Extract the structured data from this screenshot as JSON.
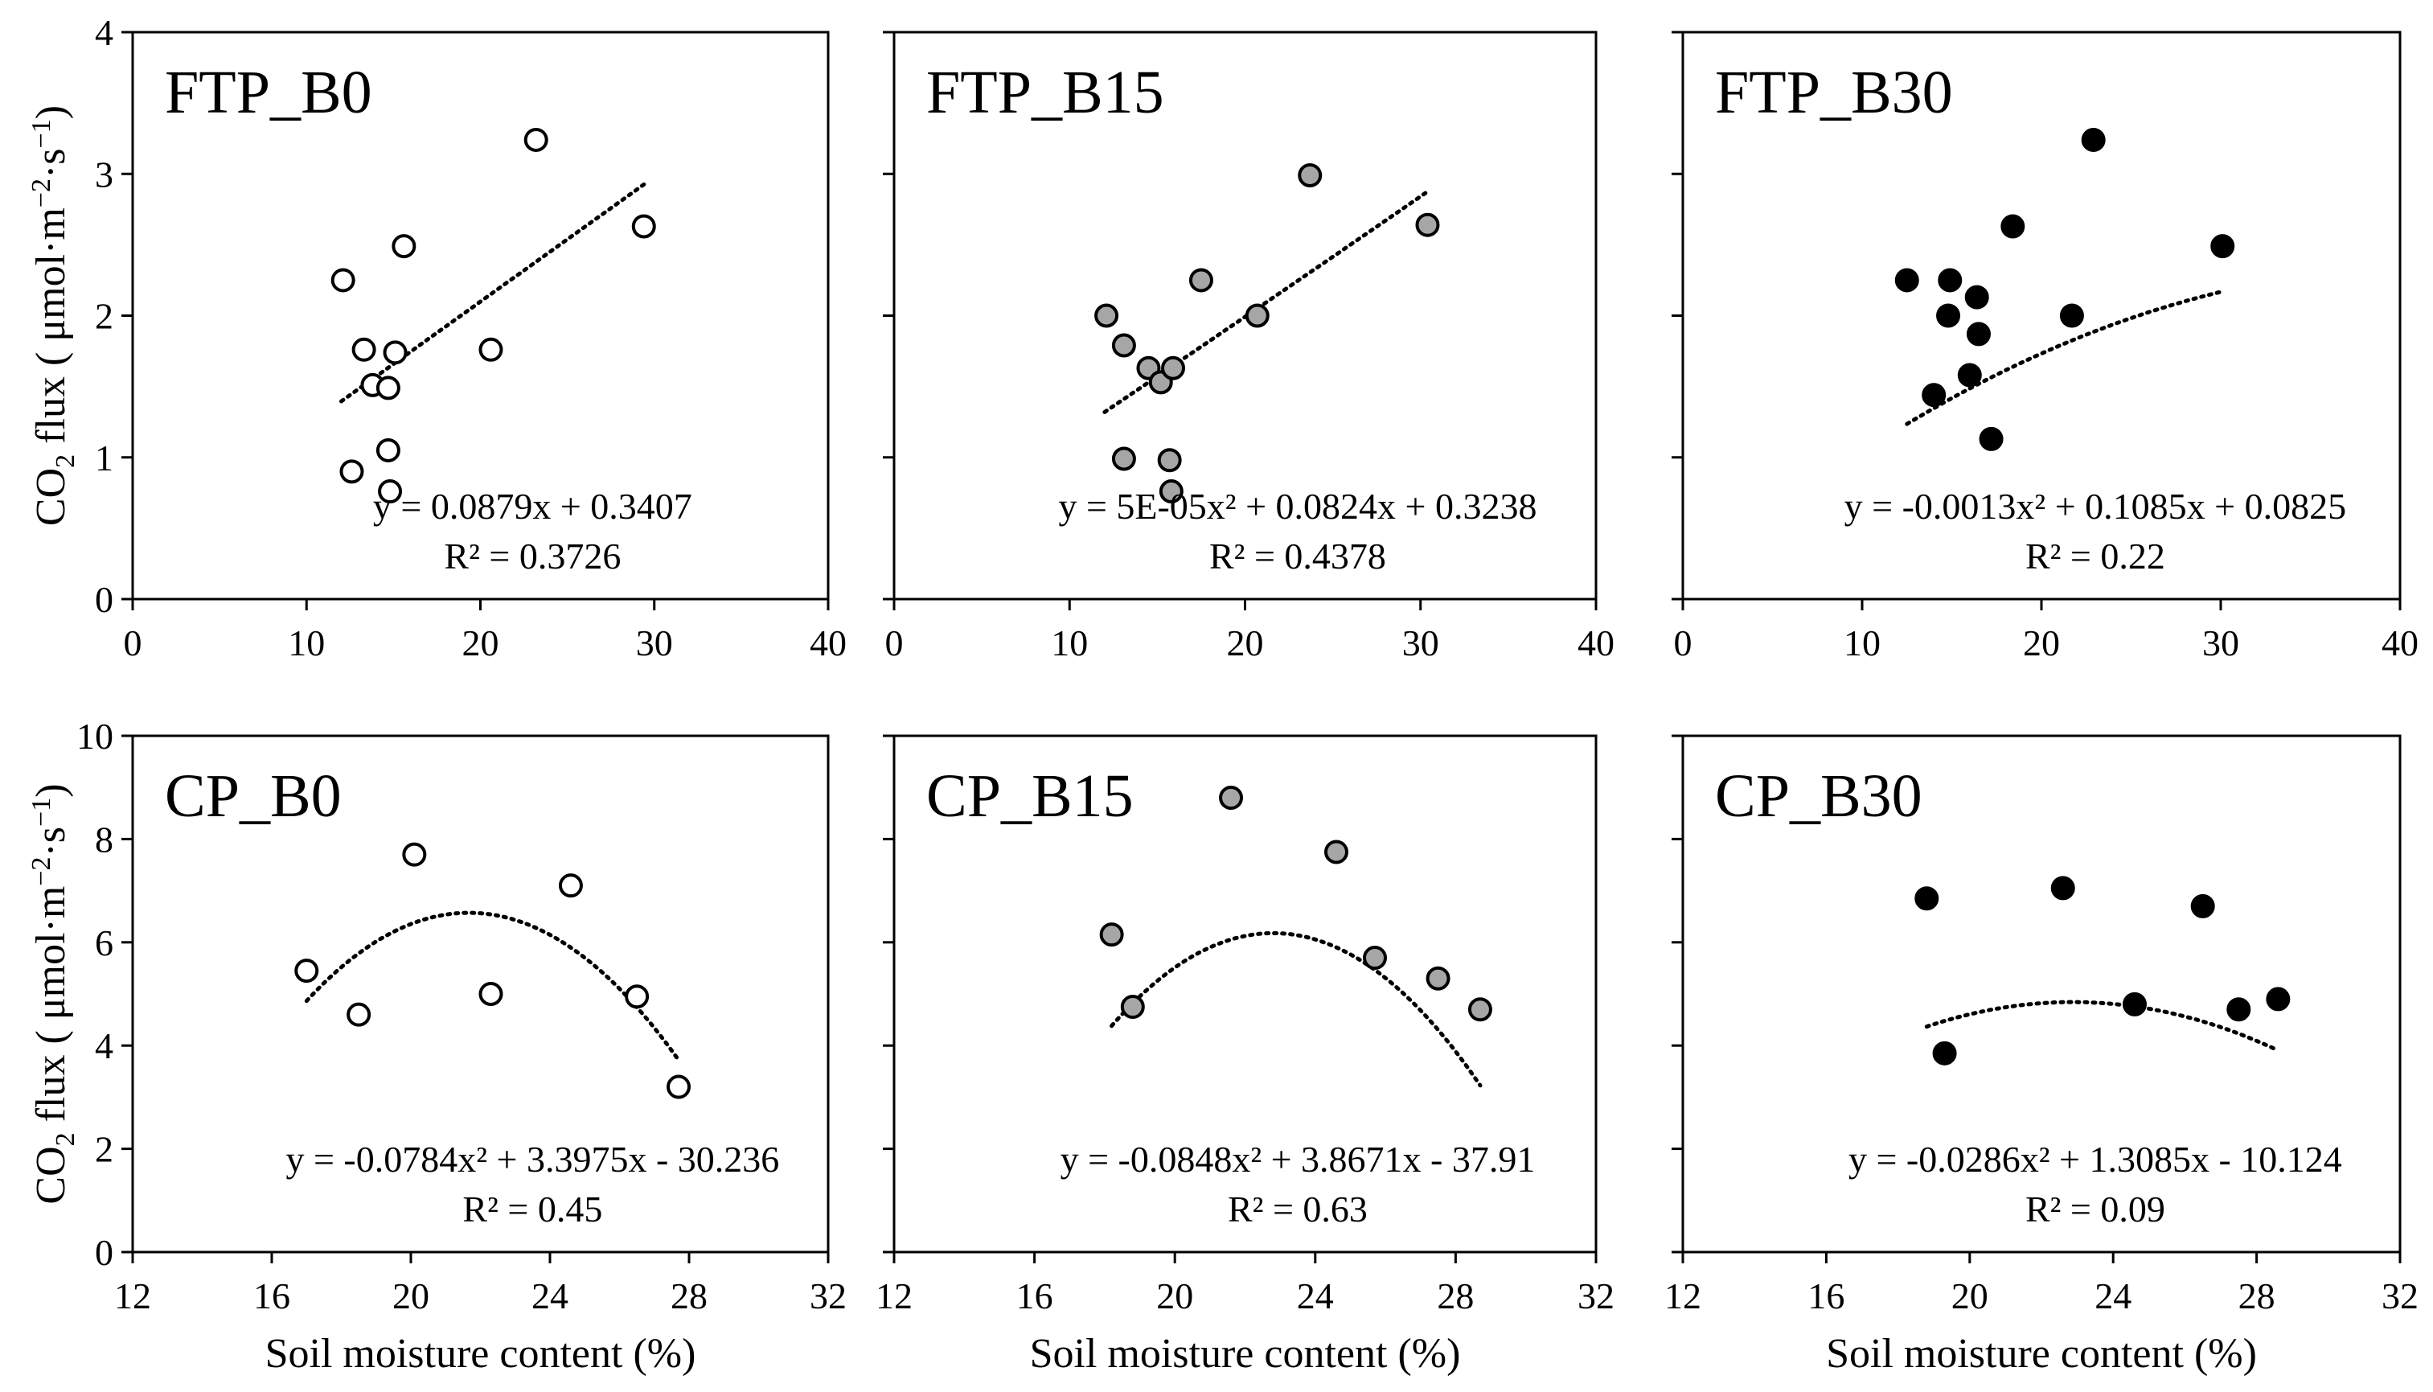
{
  "figure": {
    "ylabel_prefix": "CO",
    "ylabel_sub": "2",
    "ylabel_suffix": " flux ( μmol·m",
    "ylabel_sup1": "−2",
    "ylabel_mid": "·s",
    "ylabel_sup2": "−1",
    "ylabel_close": ")",
    "xlabel": "Soil moisture content (%)"
  },
  "chart_data": [
    {
      "type": "scatter",
      "title": "FTP_B0",
      "marker": "open",
      "xlim": [
        0,
        40
      ],
      "ylim": [
        0,
        4
      ],
      "xticks": [
        "0",
        "10",
        "20",
        "30",
        "40"
      ],
      "yticks": [
        "0",
        "1",
        "2",
        "3",
        "4"
      ],
      "show_xticklabels": true,
      "show_yticklabels": true,
      "points": [
        [
          12.1,
          2.25
        ],
        [
          13.3,
          1.76
        ],
        [
          13.8,
          1.51
        ],
        [
          14.7,
          1.49
        ],
        [
          15.1,
          1.74
        ],
        [
          15.6,
          2.49
        ],
        [
          12.6,
          0.9
        ],
        [
          14.7,
          1.05
        ],
        [
          14.8,
          0.76
        ],
        [
          20.6,
          1.76
        ],
        [
          23.2,
          3.24
        ],
        [
          29.4,
          2.63
        ]
      ],
      "fit": {
        "coef": [
          0,
          0.0879,
          0.3407
        ],
        "range": [
          12,
          29.5
        ]
      },
      "equation": "y = 0.0879x + 0.3407",
      "r2_label": "R² = 0.3726"
    },
    {
      "type": "scatter",
      "title": "FTP_B15",
      "marker": "gray",
      "xlim": [
        0,
        40
      ],
      "ylim": [
        0,
        4
      ],
      "xticks": [
        "0",
        "10",
        "20",
        "30",
        "40"
      ],
      "yticks": [
        "0",
        "1",
        "2",
        "3",
        "4"
      ],
      "show_xticklabels": true,
      "show_yticklabels": false,
      "points": [
        [
          12.1,
          2.0
        ],
        [
          13.1,
          1.79
        ],
        [
          14.5,
          1.63
        ],
        [
          15.2,
          1.53
        ],
        [
          15.9,
          1.63
        ],
        [
          17.5,
          2.25
        ],
        [
          20.7,
          2.0
        ],
        [
          23.7,
          2.99
        ],
        [
          30.4,
          2.64
        ],
        [
          13.1,
          0.99
        ],
        [
          15.7,
          0.98
        ],
        [
          15.8,
          0.76
        ]
      ],
      "fit": {
        "coef": [
          5e-05,
          0.0824,
          0.3238
        ],
        "range": [
          12,
          30.5
        ]
      },
      "equation": "y = 5E-05x² + 0.0824x + 0.3238",
      "r2_label": "R² = 0.4378"
    },
    {
      "type": "scatter",
      "title": "FTP_B30",
      "marker": "filled",
      "xlim": [
        0,
        40
      ],
      "ylim": [
        0,
        4
      ],
      "xticks": [
        "0",
        "10",
        "20",
        "30",
        "40"
      ],
      "yticks": [
        "0",
        "1",
        "2",
        "3",
        "4"
      ],
      "show_xticklabels": true,
      "show_yticklabels": false,
      "points": [
        [
          12.5,
          2.25
        ],
        [
          14.9,
          2.25
        ],
        [
          14.8,
          2.0
        ],
        [
          16.4,
          2.13
        ],
        [
          16.5,
          1.87
        ],
        [
          16.0,
          1.58
        ],
        [
          14.0,
          1.44
        ],
        [
          17.2,
          1.13
        ],
        [
          18.4,
          2.63
        ],
        [
          21.7,
          2.0
        ],
        [
          22.9,
          3.24
        ],
        [
          30.1,
          2.49
        ]
      ],
      "fit": {
        "coef": [
          -0.0013,
          0.1085,
          0.0825
        ],
        "range": [
          12.5,
          30
        ]
      },
      "equation": "y = -0.0013x² + 0.1085x + 0.0825",
      "r2_label": "R² = 0.22"
    },
    {
      "type": "scatter",
      "title": "CP_B0",
      "marker": "open",
      "xlim": [
        12,
        32
      ],
      "ylim": [
        0,
        10
      ],
      "xticks": [
        "12",
        "16",
        "20",
        "24",
        "28",
        "32"
      ],
      "yticks": [
        "0",
        "2",
        "4",
        "6",
        "8",
        "10"
      ],
      "show_xticklabels": true,
      "show_yticklabels": true,
      "points": [
        [
          17.0,
          5.45
        ],
        [
          18.5,
          4.6
        ],
        [
          20.1,
          7.7
        ],
        [
          22.3,
          5.0
        ],
        [
          24.6,
          7.1
        ],
        [
          26.5,
          4.95
        ],
        [
          27.7,
          3.2
        ]
      ],
      "fit": {
        "coef": [
          -0.0784,
          3.3975,
          -30.236
        ],
        "range": [
          17,
          27.7
        ]
      },
      "equation": "y = -0.0784x² + 3.3975x - 30.236",
      "r2_label": "R² = 0.45"
    },
    {
      "type": "scatter",
      "title": "CP_B15",
      "marker": "gray",
      "xlim": [
        12,
        32
      ],
      "ylim": [
        0,
        10
      ],
      "xticks": [
        "12",
        "16",
        "20",
        "24",
        "28",
        "32"
      ],
      "yticks": [
        "0",
        "2",
        "4",
        "6",
        "8",
        "10"
      ],
      "show_xticklabels": true,
      "show_yticklabels": false,
      "points": [
        [
          18.2,
          6.15
        ],
        [
          18.8,
          4.75
        ],
        [
          21.6,
          8.8
        ],
        [
          24.6,
          7.75
        ],
        [
          25.7,
          5.7
        ],
        [
          27.5,
          5.3
        ],
        [
          28.7,
          4.7
        ]
      ],
      "fit": {
        "coef": [
          -0.0848,
          3.8671,
          -37.91
        ],
        "range": [
          18.2,
          28.7
        ]
      },
      "equation": "y = -0.0848x² + 3.8671x - 37.91",
      "r2_label": "R² = 0.63"
    },
    {
      "type": "scatter",
      "title": "CP_B30",
      "marker": "filled",
      "xlim": [
        12,
        32
      ],
      "ylim": [
        0,
        10
      ],
      "xticks": [
        "12",
        "16",
        "20",
        "24",
        "28",
        "32"
      ],
      "yticks": [
        "0",
        "2",
        "4",
        "6",
        "8",
        "10"
      ],
      "show_xticklabels": true,
      "show_yticklabels": false,
      "points": [
        [
          18.8,
          6.85
        ],
        [
          19.3,
          3.85
        ],
        [
          22.6,
          7.05
        ],
        [
          24.6,
          4.8
        ],
        [
          26.5,
          6.7
        ],
        [
          27.5,
          4.7
        ],
        [
          28.6,
          4.9
        ]
      ],
      "fit": {
        "coef": [
          -0.0286,
          1.3085,
          -10.124
        ],
        "range": [
          18.8,
          28.6
        ]
      },
      "equation": "y = -0.0286x² + 1.3085x - 10.124",
      "r2_label": "R² = 0.09"
    }
  ]
}
